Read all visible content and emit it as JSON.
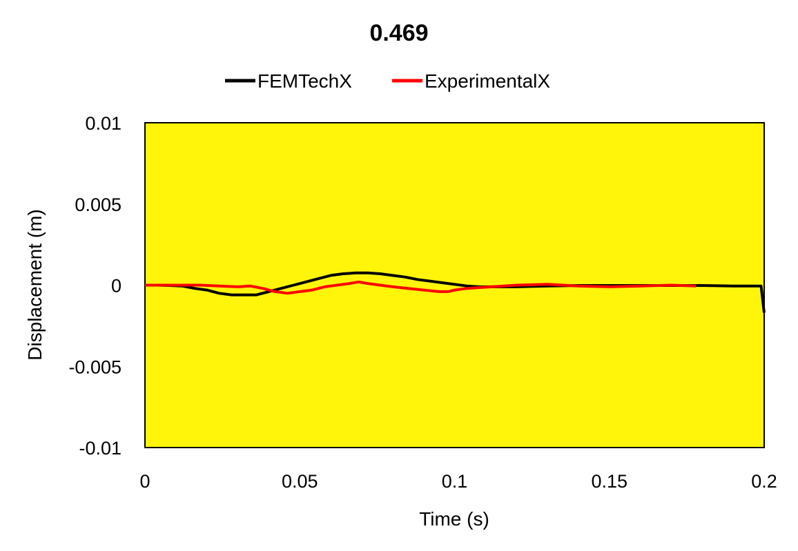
{
  "chart_data": {
    "type": "line",
    "title": "0.469",
    "xlabel": "Time (s)",
    "ylabel": "Displacement (m)",
    "xlim": [
      0,
      0.2
    ],
    "ylim": [
      -0.01,
      0.01
    ],
    "x_ticks": [
      "0",
      "0.05",
      "0.1",
      "0.15",
      "0.2"
    ],
    "y_ticks": [
      "0.01",
      "0.005",
      "0",
      "-0.005",
      "-0.01"
    ],
    "x_tick_values": [
      0,
      0.05,
      0.1,
      0.15,
      0.2
    ],
    "y_tick_values": [
      0.01,
      0.005,
      0,
      -0.005,
      -0.01
    ],
    "legend_position": "top",
    "plot_background": "#FFF50A",
    "grid": false,
    "series": [
      {
        "name": "FEMTechX",
        "color": "#000000",
        "x": [
          0,
          0.004,
          0.008,
          0.012,
          0.016,
          0.02,
          0.024,
          0.028,
          0.032,
          0.036,
          0.04,
          0.044,
          0.048,
          0.052,
          0.056,
          0.06,
          0.064,
          0.068,
          0.072,
          0.076,
          0.08,
          0.084,
          0.088,
          0.092,
          0.096,
          0.1,
          0.104,
          0.108,
          0.112,
          0.12,
          0.13,
          0.14,
          0.15,
          0.16,
          0.17,
          0.18,
          0.19,
          0.199,
          0.2
        ],
        "y": [
          0,
          0,
          -2e-05,
          -5e-05,
          -0.0002,
          -0.0003,
          -0.0005,
          -0.0006,
          -0.0006,
          -0.0006,
          -0.0004,
          -0.0002,
          0,
          0.0002,
          0.0004,
          0.0006,
          0.0007,
          0.00075,
          0.00075,
          0.0007,
          0.0006,
          0.0005,
          0.00035,
          0.00025,
          0.00015,
          5e-05,
          -5e-05,
          -0.0001,
          -0.0001,
          -0.0001,
          -5e-05,
          -2e-05,
          -2e-05,
          -2e-05,
          -2e-05,
          -2e-05,
          -5e-05,
          -5e-05,
          -0.0017
        ]
      },
      {
        "name": "ExperimentalX",
        "color": "#FF0000",
        "x": [
          0,
          0.006,
          0.012,
          0.018,
          0.024,
          0.03,
          0.034,
          0.038,
          0.042,
          0.046,
          0.05,
          0.054,
          0.058,
          0.062,
          0.066,
          0.069,
          0.072,
          0.076,
          0.08,
          0.085,
          0.09,
          0.095,
          0.098,
          0.1,
          0.104,
          0.108,
          0.112,
          0.12,
          0.13,
          0.14,
          0.15,
          0.16,
          0.17,
          0.178
        ],
        "y": [
          0,
          0,
          0,
          0,
          -5e-05,
          -0.0001,
          -5e-05,
          -0.0002,
          -0.0004,
          -0.0005,
          -0.0004,
          -0.0003,
          -0.0001,
          0,
          0.0001,
          0.0002,
          0.0001,
          0,
          -0.0001,
          -0.0002,
          -0.0003,
          -0.0004,
          -0.0004,
          -0.0003,
          -0.0002,
          -0.00015,
          -0.0001,
          0,
          5e-05,
          -5e-05,
          -0.0001,
          -5e-05,
          0,
          -5e-05
        ]
      }
    ]
  }
}
